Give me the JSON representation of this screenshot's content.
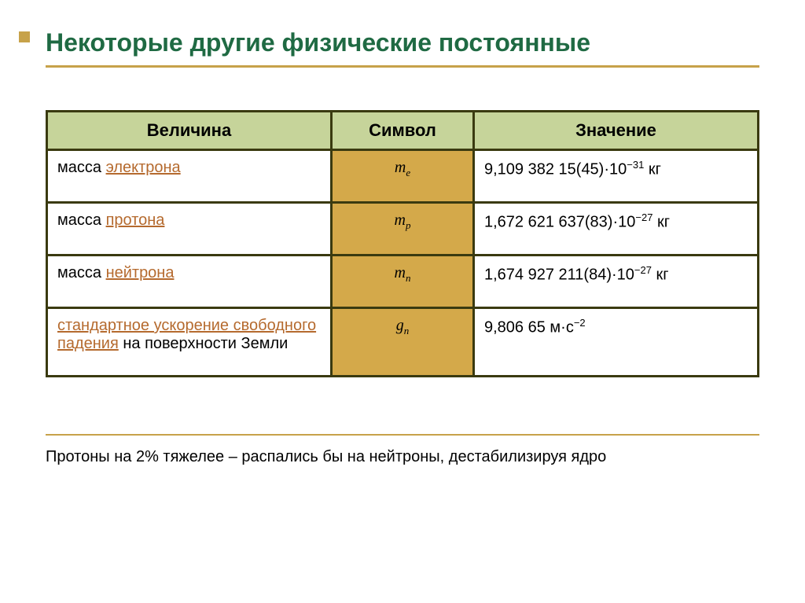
{
  "colors": {
    "title_text": "#1f6a43",
    "rule": "#c7a24a",
    "table_border": "#3a3a10",
    "header_bg": "#c6d49a",
    "header_text": "#000000",
    "symbol_bg": "#d4a94a",
    "symbol_text": "#000000",
    "body_text": "#000000",
    "link_text": "#b56a2e",
    "marker": "#c7a24a",
    "page_bg": "#ffffff"
  },
  "title": "Некоторые другие физические постоянные",
  "table": {
    "headers": {
      "quantity": "Величина",
      "symbol": "Символ",
      "value": "Значение"
    },
    "rows": [
      {
        "q_plain": "масса ",
        "q_link": "электрона",
        "q_tail": "",
        "sym_base": "m",
        "sym_sub": "e",
        "val_pre": "9,109 382 15(45)·10",
        "val_sup": "−31",
        "val_post": " кг"
      },
      {
        "q_plain": "масса ",
        "q_link": "протона",
        "q_tail": "",
        "sym_base": "m",
        "sym_sub": "p",
        "val_pre": "1,672 621 637(83)·10",
        "val_sup": "−27",
        "val_post": " кг"
      },
      {
        "q_plain": "масса ",
        "q_link": "нейтрона",
        "q_tail": "",
        "sym_base": "m",
        "sym_sub": "n",
        "val_pre": "1,674 927 211(84)·10",
        "val_sup": "−27",
        "val_post": " кг"
      },
      {
        "q_plain": "",
        "q_link": "стандартное ускорение свободного падения",
        "q_tail": " на поверхности Земли",
        "sym_base": "g",
        "sym_sub": "n",
        "val_pre": "9,806 65 м·с",
        "val_sup": "−2",
        "val_post": ""
      }
    ]
  },
  "footnote": "Протоны на 2% тяжелее – распались бы на нейтроны, дестабилизируя  ядро"
}
